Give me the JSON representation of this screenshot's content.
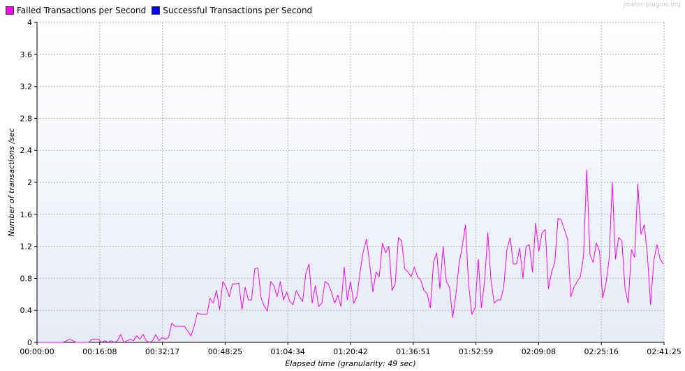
{
  "legend": [
    {
      "label": "Failed Transactions per Second",
      "color": "#ff00ff"
    },
    {
      "label": "Successful Transactions per Second",
      "color": "#0000ff"
    }
  ],
  "watermark": "jmeter-plugins.org",
  "chart_data": {
    "type": "line",
    "xlabel": "Elapsed time (granularity: 49 sec)",
    "ylabel": "Number of transactions /sec",
    "ylim": [
      0,
      4
    ],
    "yticks": [
      "0",
      "0.4",
      "0.8",
      "1.2",
      "1.6",
      "2",
      "2.4",
      "2.8",
      "3.2",
      "3.6",
      "4"
    ],
    "xticks": [
      "00:00:00",
      "00:16:08",
      "00:32:17",
      "00:48:25",
      "01:04:34",
      "01:20:42",
      "01:36:51",
      "01:52:59",
      "02:09:08",
      "02:25:16",
      "02:41:25"
    ],
    "x_unit_seconds_per_tick": 968,
    "grid": true,
    "background": [
      "#ffffff",
      "#e6ecf6"
    ],
    "series": [
      {
        "name": "Failed Transactions per Second",
        "color": "#ff00ff",
        "values": [
          0,
          0,
          0,
          0,
          0,
          0,
          0,
          0,
          0,
          0.02,
          0.04,
          0.02,
          0,
          0,
          0,
          0,
          0,
          0.04,
          0.04,
          0.04,
          0,
          0.02,
          0,
          0.02,
          0,
          0.02,
          0.1,
          0,
          0.02,
          0.04,
          0.02,
          0.08,
          0.04,
          0.1,
          0.02,
          0,
          0.02,
          0.1,
          0.02,
          0.06,
          0.04,
          0.06,
          0.24,
          0.2,
          0.2,
          0.2,
          0.2,
          0.14,
          0.08,
          0.2,
          0.37,
          0.35,
          0.35,
          0.35,
          0.55,
          0.49,
          0.65,
          0.41,
          0.76,
          0.69,
          0.57,
          0.73,
          0.73,
          0.74,
          0.41,
          0.69,
          0.53,
          0.53,
          0.92,
          0.93,
          0.55,
          0.45,
          0.39,
          0.76,
          0.71,
          0.57,
          0.76,
          0.53,
          0.63,
          0.51,
          0.47,
          0.65,
          0.57,
          0.51,
          0.86,
          0.98,
          0.49,
          0.71,
          0.45,
          0.49,
          0.76,
          0.73,
          0.63,
          0.49,
          0.59,
          0.45,
          0.94,
          0.53,
          0.76,
          0.49,
          0.57,
          0.88,
          1.14,
          1.29,
          0.98,
          0.63,
          0.88,
          0.82,
          1.24,
          1.12,
          1.2,
          0.65,
          0.73,
          1.31,
          1.27,
          0.92,
          0.88,
          0.82,
          0.94,
          0.82,
          0.78,
          0.65,
          0.61,
          0.43,
          1.0,
          1.12,
          0.67,
          1.2,
          0.76,
          0.69,
          0.31,
          0.59,
          0.98,
          1.2,
          1.47,
          0.73,
          0.35,
          0.43,
          1.04,
          0.43,
          0.76,
          1.37,
          0.78,
          0.49,
          0.53,
          0.53,
          0.69,
          1.16,
          1.31,
          0.98,
          0.98,
          1.18,
          0.8,
          1.2,
          1.22,
          0.88,
          1.49,
          1.14,
          1.37,
          1.41,
          0.67,
          0.88,
          1.0,
          1.55,
          1.53,
          1.41,
          1.29,
          0.57,
          0.69,
          0.76,
          0.82,
          1.08,
          2.16,
          1.1,
          1.0,
          1.24,
          1.14,
          0.55,
          0.73,
          1.04,
          2.0,
          1.04,
          1.31,
          1.27,
          0.67,
          0.49,
          1.16,
          1.06,
          1.98,
          1.35,
          1.47,
          1.1,
          0.47,
          1.02,
          1.22,
          1.04,
          0.98
        ]
      }
    ]
  }
}
